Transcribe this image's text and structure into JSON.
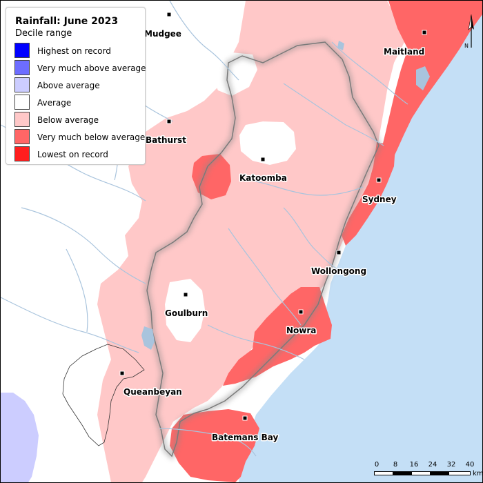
{
  "legend": {
    "title": "Rainfall: June 2023",
    "subtitle": "Decile range",
    "items": [
      {
        "label": "Highest on record",
        "color": "#0000ff"
      },
      {
        "label": "Very much above average",
        "color": "#6d6dff"
      },
      {
        "label": "Above average",
        "color": "#cccdff"
      },
      {
        "label": "Average",
        "color": "#ffffff"
      },
      {
        "label": "Below average",
        "color": "#ffc8c8"
      },
      {
        "label": "Very much below average",
        "color": "#ff6666"
      },
      {
        "label": "Lowest on record",
        "color": "#ff1e1e"
      }
    ]
  },
  "towns": {
    "maitland": "Maitland",
    "mudgee": "Mudgee",
    "bathurst": "Bathurst",
    "katoomba": "Katoomba",
    "sydney": "Sydney",
    "wollongong": "Wollongong",
    "goulburn": "Goulburn",
    "nowra": "Nowra",
    "queanbeyan": "Queanbeyan",
    "batemans_bay": "Batemans Bay"
  },
  "scalebar": {
    "ticks": [
      "0",
      "8",
      "16",
      "24",
      "32",
      "40"
    ],
    "units": "km"
  },
  "north_label": "N",
  "colors": {
    "ocean": "#c4dff6",
    "river": "#a9c4dd",
    "below_average": "#ffc8c8",
    "very_much_below_average": "#ff6666",
    "above_average": "#cccdff"
  }
}
